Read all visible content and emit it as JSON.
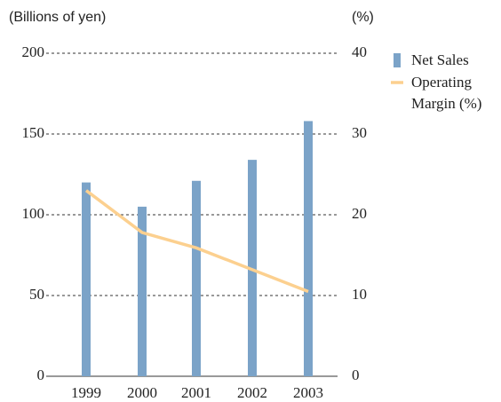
{
  "chart_data": {
    "type": "bar-line",
    "y_label": "(Billions of yen)",
    "y2_label": "(%)",
    "categories": [
      "1999",
      "2000",
      "2001",
      "2002",
      "2003"
    ],
    "series": [
      {
        "name": "Net Sales",
        "type": "bar",
        "color": "#7ba3c8",
        "values": [
          120,
          105,
          121,
          134,
          158
        ]
      },
      {
        "name": "Operating Margin (%)",
        "type": "line",
        "axis": "y2",
        "color": "#fcd08f",
        "values": [
          23,
          17.8,
          15.9,
          13.2,
          10.5
        ]
      }
    ],
    "ylim": [
      0,
      200
    ],
    "yticks": [
      0,
      50,
      100,
      150,
      200
    ],
    "y2lim": [
      0,
      40
    ],
    "y2ticks": [
      0,
      10,
      20,
      30,
      40
    ],
    "grid": true,
    "legend": "right"
  }
}
